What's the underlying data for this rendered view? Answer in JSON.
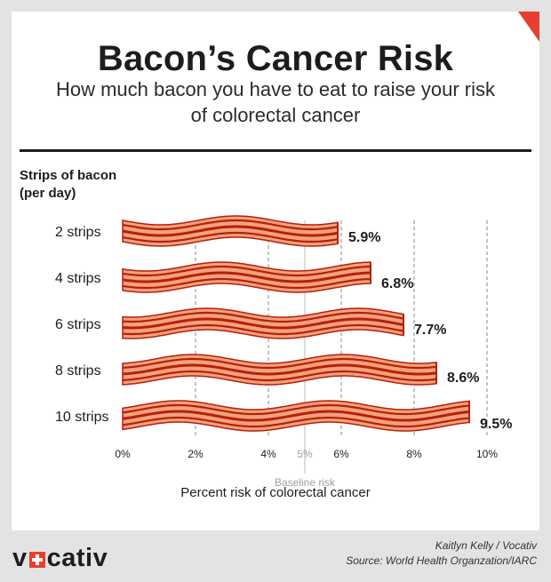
{
  "header": {
    "title": "Bacon’s Cancer Risk",
    "subtitle": "How much bacon you have to eat to raise your risk of colorectal cancer"
  },
  "footer": {
    "brand_left": "v",
    "brand_right": "cativ",
    "author": "Kaitlyn Kelly  / Vocativ",
    "source": "Source: World Health Organzation/IARC"
  },
  "colors": {
    "bacon_fill": "#f2a27a",
    "bacon_stripe": "#b51f0f",
    "accent": "#e5402e",
    "grid": "#888888"
  },
  "chart_data": {
    "type": "bar",
    "orientation": "horizontal",
    "category_axis_title": "Strips of bacon (per day)",
    "categories": [
      "2 strips",
      "4 strips",
      "6 strips",
      "8 strips",
      "10 strips"
    ],
    "values": [
      5.9,
      6.8,
      7.7,
      8.6,
      9.5
    ],
    "value_labels": [
      "5.9%",
      "6.8%",
      "7.7%",
      "8.6%",
      "9.5%"
    ],
    "xlabel": "Percent risk of colorectal cancer",
    "xlim": [
      0,
      10
    ],
    "ticks": [
      0,
      2,
      4,
      6,
      8,
      10
    ],
    "tick_labels": [
      "0%",
      "2%",
      "4%",
      "6%",
      "8%",
      "10%"
    ],
    "baseline": {
      "value": 5,
      "tick_label": "5%",
      "label": "Baseline risk"
    },
    "grid": true
  }
}
